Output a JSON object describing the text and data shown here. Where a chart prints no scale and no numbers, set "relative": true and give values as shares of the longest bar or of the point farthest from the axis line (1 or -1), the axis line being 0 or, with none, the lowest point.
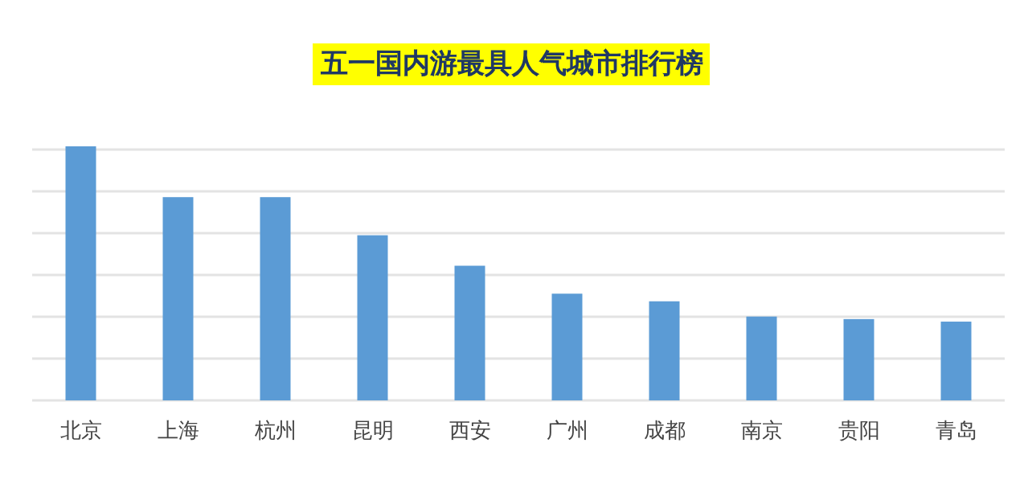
{
  "chart_data": {
    "type": "bar",
    "title": "五一国内游最具人气城市排行榜",
    "relative": true,
    "grid": "y",
    "categories": [
      "北京",
      "上海",
      "杭州",
      "昆明",
      "西安",
      "广州",
      "成都",
      "南京",
      "贵阳",
      "青岛"
    ],
    "series": [
      {
        "color": "#5b9bd5",
        "values": [
          1,
          0.8,
          0.8,
          0.65,
          0.53,
          0.42,
          0.39,
          0.33,
          0.32,
          0.31
        ]
      }
    ]
  }
}
